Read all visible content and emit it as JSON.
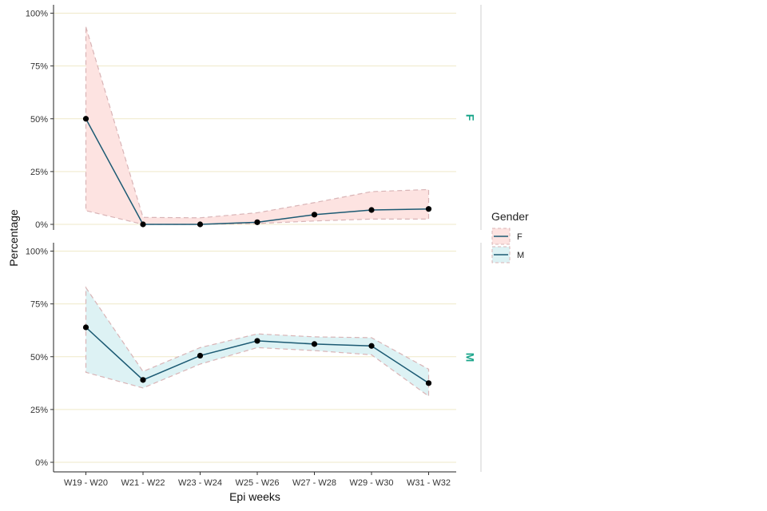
{
  "chart_data": {
    "type": "line",
    "xlabel": "Epi weeks",
    "ylabel": "Percentage",
    "categories": [
      "W19 - W20",
      "W21 - W22",
      "W23 - W24",
      "W25 - W26",
      "W27 - W28",
      "W29 - W30",
      "W31 - W32"
    ],
    "ylim": [
      0,
      100
    ],
    "y_ticks": [
      0,
      25,
      50,
      75,
      100
    ],
    "y_tick_labels": [
      "0%",
      "25%",
      "50%",
      "75%",
      "100%"
    ],
    "grid": "horizontal",
    "legend": {
      "title": "Gender",
      "position": "right",
      "entries": [
        "F",
        "M"
      ]
    },
    "panels": [
      {
        "label": "F",
        "name": "F",
        "values": [
          50,
          0,
          0,
          1,
          4.6,
          6.8,
          7.3
        ],
        "lower": [
          6.5,
          0,
          0,
          0.4,
          1.6,
          2.5,
          2.5
        ],
        "upper": [
          93.5,
          3.3,
          3.1,
          5.5,
          10.3,
          15.5,
          16.5
        ]
      },
      {
        "label": "M",
        "name": "M",
        "values": [
          63.9,
          39,
          50.5,
          57.5,
          56,
          55.1,
          37.5
        ],
        "lower": [
          42.6,
          35.2,
          46.5,
          54.3,
          52.9,
          50.9,
          31.3
        ],
        "upper": [
          82.7,
          43,
          54.3,
          60.8,
          59.4,
          59,
          44.1
        ]
      }
    ],
    "colors": {
      "line": "#1c5a73",
      "point": "#000000",
      "band_F_fill": "#fde3e1",
      "band_M_fill": "#ddf2f4",
      "band_outline": "#d9b4b6",
      "grid": "#efe9c9",
      "strip_text": "#1aa58a"
    }
  }
}
